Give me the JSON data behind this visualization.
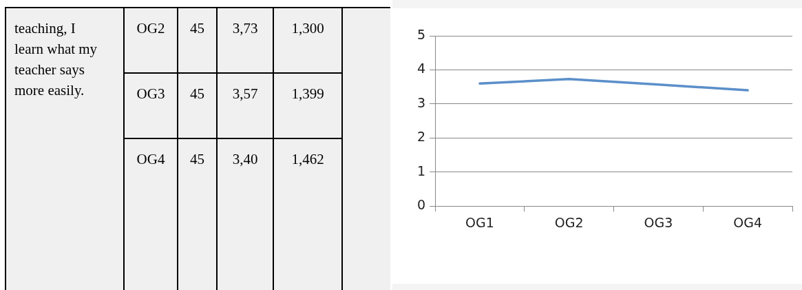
{
  "chart_data": [
    {
      "type": "other",
      "annotations": [
        "teaching, I learn what my teacher says more easily.",
        "OG2",
        "45",
        "3,73",
        "1,300",
        "OG3",
        "45",
        "3,57",
        "1,399",
        "OG4",
        "45",
        "3,40",
        "1,462"
      ]
    },
    {
      "type": "line",
      "categories": [
        "OG1",
        "OG2",
        "OG3",
        "OG4"
      ],
      "series": [
        {
          "color": "#5b8fc9",
          "values": [
            3.6,
            3.73,
            3.57,
            3.4
          ]
        }
      ],
      "ylim": [
        0,
        5
      ],
      "yticks": [
        0,
        1,
        2,
        3,
        4,
        5
      ],
      "grid": "y",
      "legend": false,
      "marker": "none",
      "line_style": "solid"
    }
  ]
}
